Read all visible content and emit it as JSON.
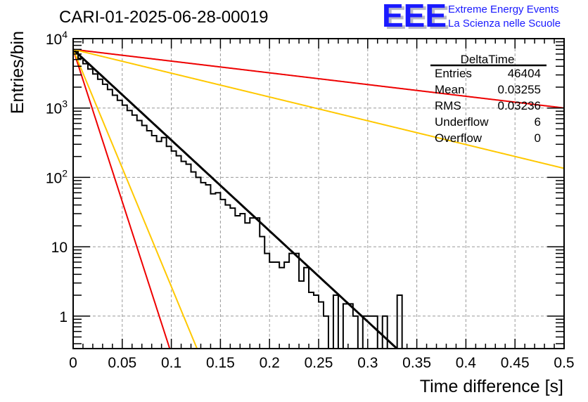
{
  "chart_data": {
    "type": "bar",
    "subtype": "histogram-step",
    "title": "CARI-01-2025-06-28-00019",
    "xlabel": "Time difference [s]",
    "ylabel": "Entries/bin",
    "xlim": [
      0,
      0.5
    ],
    "ylim": [
      0.34,
      10000
    ],
    "yscale": "log",
    "grid": true,
    "bin_width": 0.005,
    "x_ticks": [
      "0",
      "0.05",
      "0.1",
      "0.15",
      "0.2",
      "0.25",
      "0.3",
      "0.35",
      "0.4",
      "0.45",
      "0.5"
    ],
    "x_tick_values": [
      0,
      0.05,
      0.1,
      0.15,
      0.2,
      0.25,
      0.3,
      0.35,
      0.4,
      0.45,
      0.5
    ],
    "y_ticks": [
      {
        "value": 10000,
        "base": "10",
        "exp": "4"
      },
      {
        "value": 1000,
        "base": "10",
        "exp": "3"
      },
      {
        "value": 100,
        "base": "10",
        "exp": "2"
      },
      {
        "value": 10,
        "base": "10",
        "exp": ""
      },
      {
        "value": 1,
        "base": "1",
        "exp": ""
      }
    ],
    "histogram": {
      "name": "DeltaTime",
      "bin_edges_start": 0,
      "values": [
        6500,
        5200,
        4350,
        3650,
        3100,
        2600,
        2200,
        1850,
        1530,
        1290,
        1100,
        920,
        790,
        660,
        560,
        470,
        400,
        330,
        375,
        280,
        240,
        205,
        170,
        155,
        120,
        100,
        84,
        78,
        58,
        60,
        48,
        40,
        36,
        28,
        30,
        22,
        26,
        26,
        14,
        8,
        6,
        6,
        5,
        6,
        8,
        8,
        3.2,
        5,
        2.2,
        2,
        1.6,
        1,
        0,
        2,
        0,
        1.5,
        1.5,
        1,
        0,
        1,
        1,
        1,
        0,
        1,
        0,
        0,
        2,
        0,
        0,
        0,
        0,
        0,
        0,
        0,
        0,
        0,
        0,
        0,
        0,
        0,
        0,
        0,
        0,
        0,
        0,
        0,
        0,
        0,
        0,
        0,
        0,
        0,
        0,
        0,
        0,
        0,
        0,
        0,
        0,
        0
      ],
      "color": "#000000"
    },
    "fits": [
      {
        "name": "fit",
        "color": "#000000",
        "amplitude": 7000,
        "tau": 0.0332
      },
      {
        "name": "fast-red",
        "color": "#ee0000",
        "amplitude": 7000,
        "tau": 0.0099
      },
      {
        "name": "fast-yellow",
        "color": "#ffc800",
        "amplitude": 7000,
        "tau": 0.0127
      },
      {
        "name": "slow-red",
        "color": "#ee0000",
        "amplitude": 7000,
        "tau": 0.257
      },
      {
        "name": "slow-yellow",
        "color": "#ffc800",
        "amplitude": 7000,
        "tau": 0.1266
      }
    ],
    "stats_box": {
      "title": "DeltaTime",
      "rows": [
        {
          "label": "Entries",
          "value": "46404"
        },
        {
          "label": "Mean",
          "value": "0.03255"
        },
        {
          "label": "RMS",
          "value": "0.03236"
        },
        {
          "label": "Underflow",
          "value": "6"
        },
        {
          "label": "Overflow",
          "value": "0"
        }
      ]
    }
  },
  "logo": {
    "letters": "EEE",
    "line1": "Extreme Energy Events",
    "line2": "La Scienza nelle Scuole"
  }
}
